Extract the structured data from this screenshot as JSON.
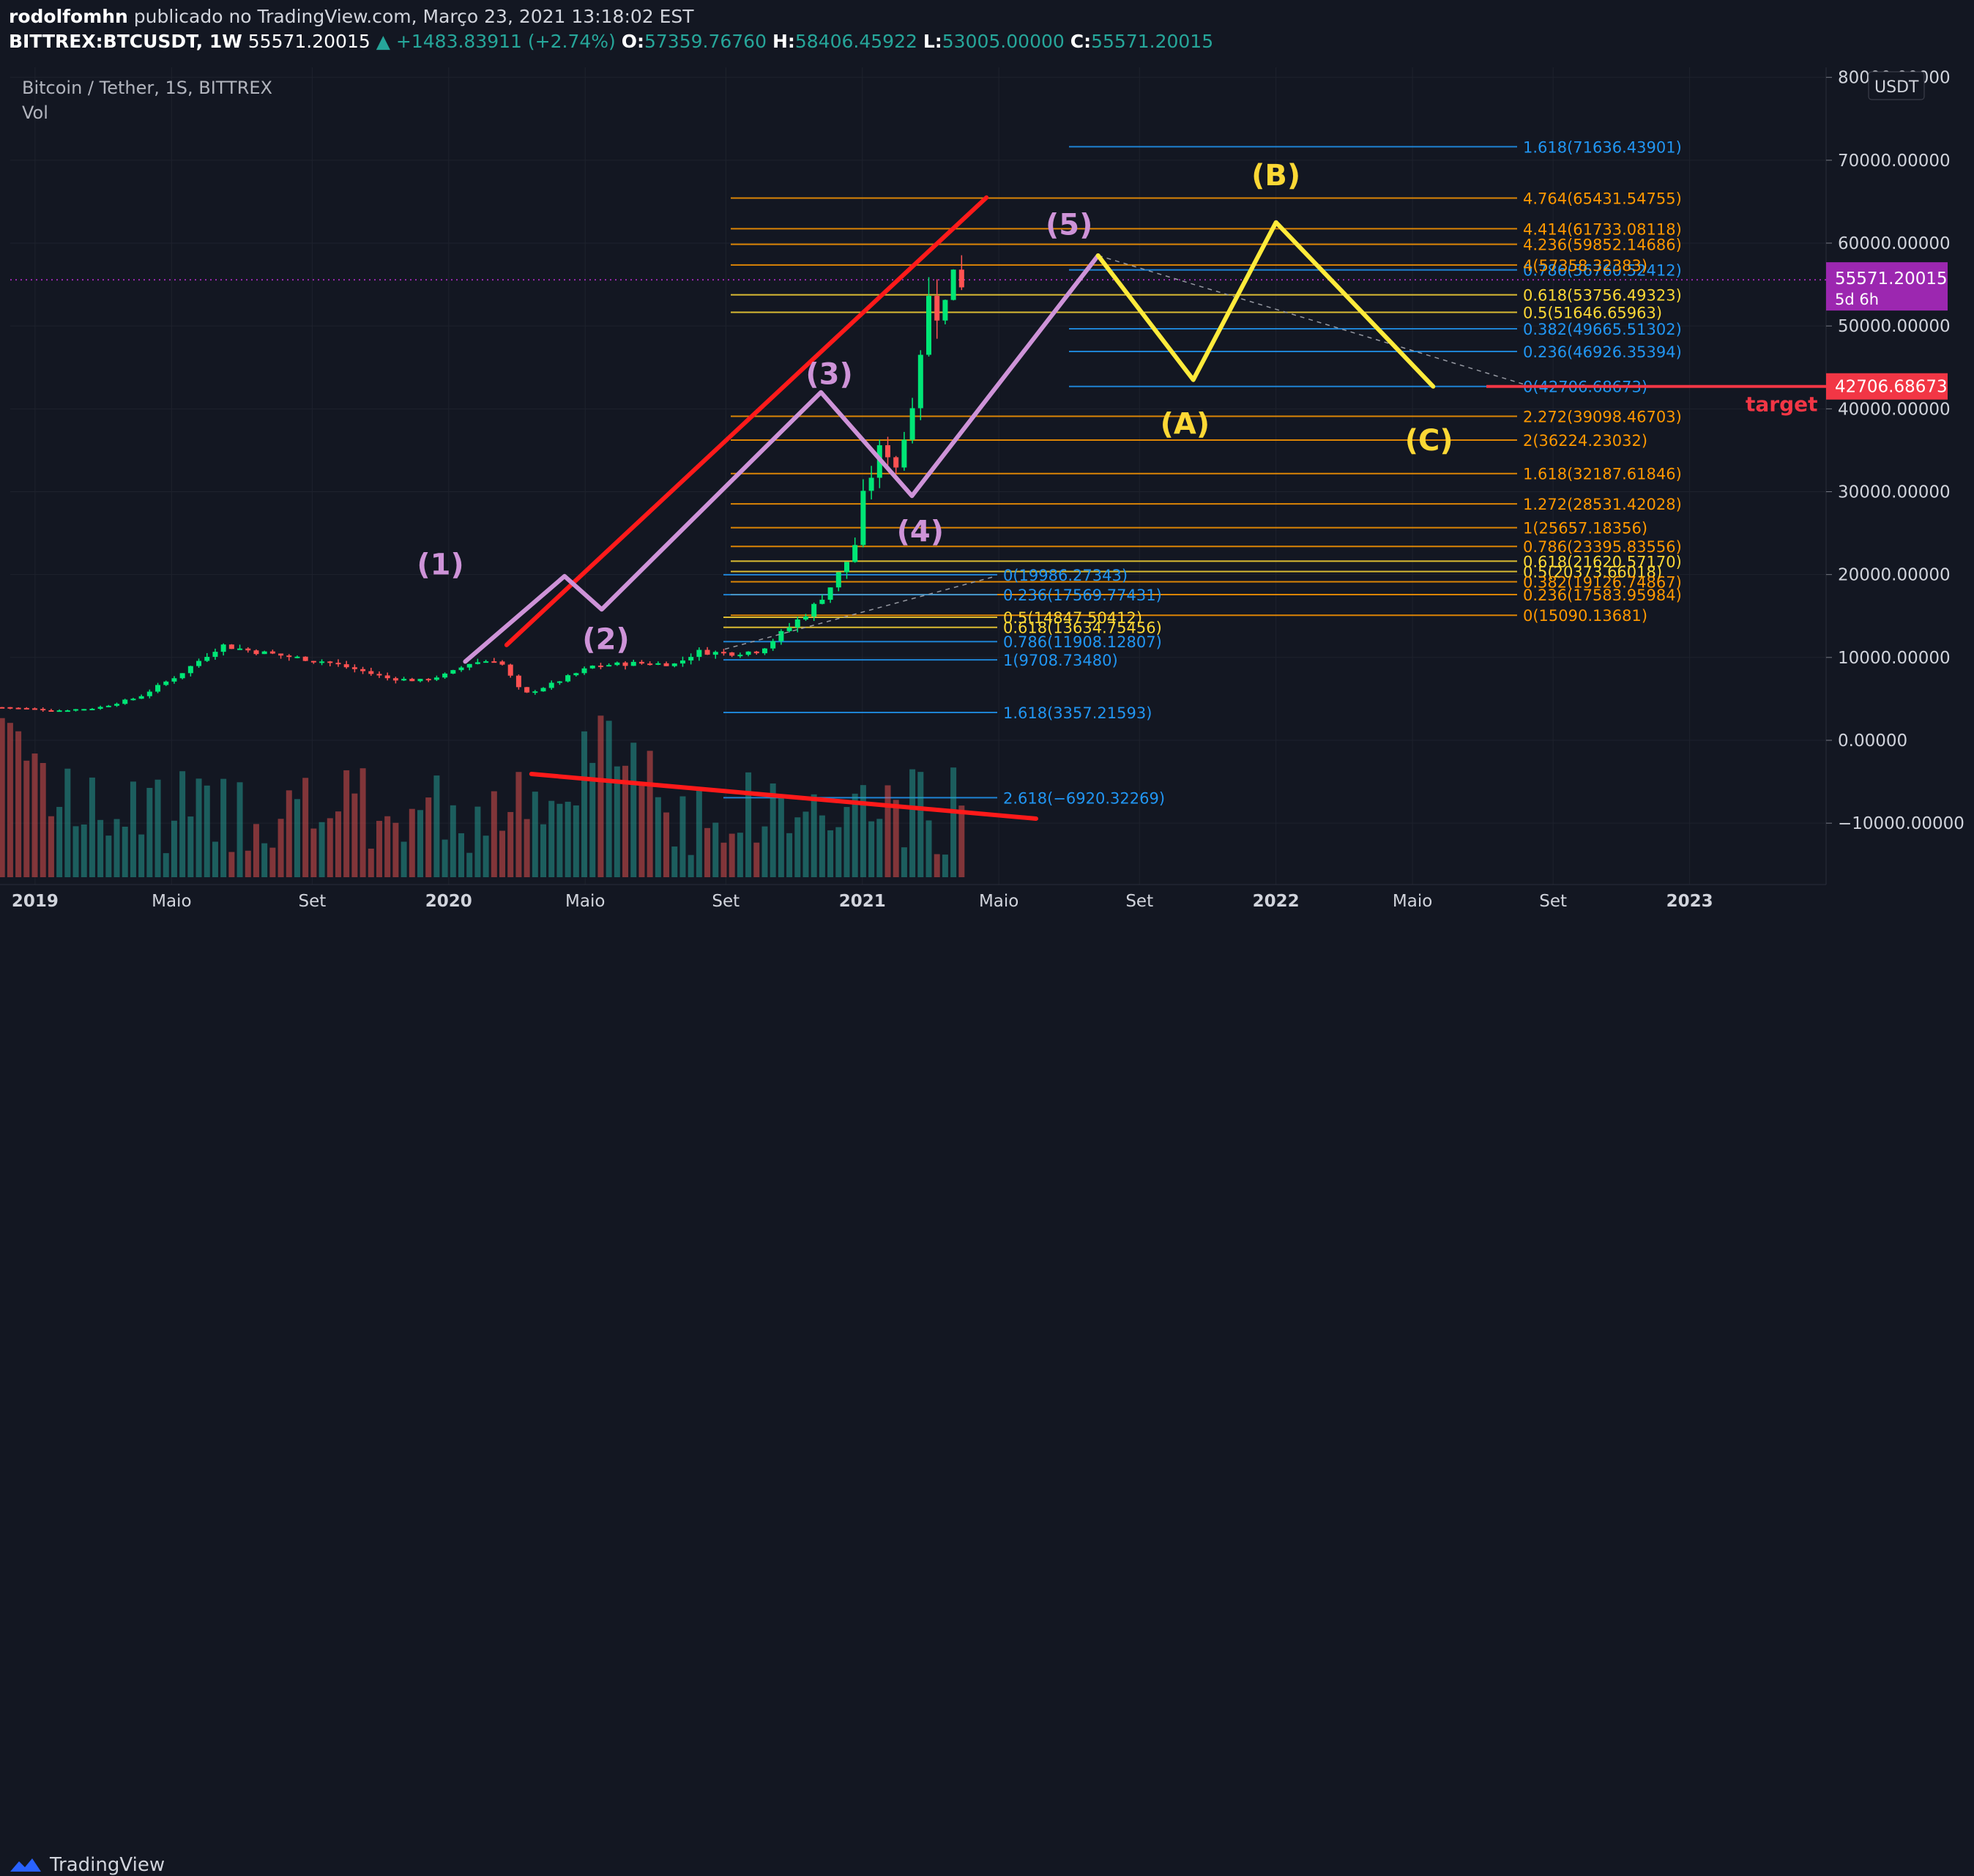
{
  "header": {
    "author": "rodolfomhn",
    "published": "publicado no TradingView.com, Março 23, 2021 13:18:02 EST",
    "symbol": "BITTREX:BTCUSDT, 1W",
    "last": "55571.20015",
    "change": "▲ +1483.83911 (+2.74%)",
    "o_label": "O:",
    "o_value": "57359.76760",
    "h_label": "H:",
    "h_value": "58406.45922",
    "l_label": "L:",
    "l_value": "53005.00000",
    "c_label": "C:",
    "c_value": "55571.20015"
  },
  "footer": {
    "logo_text": "TradingView"
  },
  "chart_data": {
    "type": "candlestick",
    "legend_title": "Bitcoin / Tether, 1S, BITTREX",
    "legend_vol": "Vol",
    "y_axis": {
      "unit": "USDT",
      "min": -15000,
      "max": 80000,
      "ticks": [
        80000,
        70000,
        60000,
        50000,
        40000,
        30000,
        20000,
        10000,
        0,
        -10000
      ],
      "tick_labels": [
        "80000.00000",
        "70000.00000",
        "60000.00000",
        "50000.00000",
        "40000.00000",
        "30000.00000",
        "20000.00000",
        "10000.00000",
        "0.00000",
        "−10000.00000"
      ]
    },
    "x_axis": {
      "labels": [
        {
          "t": 2019.0,
          "label": "2019",
          "bold": true
        },
        {
          "t": 2019.33,
          "label": "Maio",
          "bold": false
        },
        {
          "t": 2019.67,
          "label": "Set",
          "bold": false
        },
        {
          "t": 2020.0,
          "label": "2020",
          "bold": true
        },
        {
          "t": 2020.33,
          "label": "Maio",
          "bold": false
        },
        {
          "t": 2020.67,
          "label": "Set",
          "bold": false
        },
        {
          "t": 2021.0,
          "label": "2021",
          "bold": true
        },
        {
          "t": 2021.33,
          "label": "Maio",
          "bold": false
        },
        {
          "t": 2021.67,
          "label": "Set",
          "bold": false
        },
        {
          "t": 2022.0,
          "label": "2022",
          "bold": true
        },
        {
          "t": 2022.33,
          "label": "Maio",
          "bold": false
        },
        {
          "t": 2022.67,
          "label": "Set",
          "bold": false
        },
        {
          "t": 2023.0,
          "label": "2023",
          "bold": true
        }
      ]
    },
    "price_keypoints": [
      [
        2018.92,
        4000
      ],
      [
        2019.05,
        3600
      ],
      [
        2019.15,
        3900
      ],
      [
        2019.25,
        5200
      ],
      [
        2019.35,
        8000
      ],
      [
        2019.45,
        11500
      ],
      [
        2019.52,
        10800
      ],
      [
        2019.6,
        10200
      ],
      [
        2019.7,
        9500
      ],
      [
        2019.78,
        8500
      ],
      [
        2019.85,
        7500
      ],
      [
        2019.93,
        7200
      ],
      [
        2020.0,
        8000
      ],
      [
        2020.05,
        9300
      ],
      [
        2020.12,
        9800
      ],
      [
        2020.18,
        5500
      ],
      [
        2020.25,
        6800
      ],
      [
        2020.35,
        9000
      ],
      [
        2020.45,
        9300
      ],
      [
        2020.55,
        9200
      ],
      [
        2020.6,
        10700
      ],
      [
        2020.68,
        10500
      ],
      [
        2020.75,
        10800
      ],
      [
        2020.82,
        13500
      ],
      [
        2020.88,
        16000
      ],
      [
        2020.93,
        19000
      ],
      [
        2020.98,
        23000
      ],
      [
        2021.0,
        29000
      ],
      [
        2021.05,
        36000
      ],
      [
        2021.08,
        33000
      ],
      [
        2021.11,
        38000
      ],
      [
        2021.14,
        47000
      ],
      [
        2021.17,
        56000
      ],
      [
        2021.19,
        48000
      ],
      [
        2021.21,
        57000
      ],
      [
        2021.23,
        58000
      ],
      [
        2021.24,
        55571
      ]
    ],
    "volume_range": {
      "min": 0,
      "max": 100
    },
    "fib_levels": [
      {
        "label": "1.618(71636.43901)",
        "value": 71636.44,
        "color": "#2196f3"
      },
      {
        "label": "4.764(65431.54755)",
        "value": 65431.55,
        "color": "#ff9800"
      },
      {
        "label": "4.414(61733.08118)",
        "value": 61733.08,
        "color": "#ff9800"
      },
      {
        "label": "4.236(59852.14686)",
        "value": 59852.15,
        "color": "#ff9800"
      },
      {
        "label": "0.786(56760.52412)",
        "value": 56760.52,
        "color": "#2196f3"
      },
      {
        "label": "4(57358.32383)",
        "value": 57358.32,
        "color": "#ff9800"
      },
      {
        "label": "0.618(53756.49323)",
        "value": 53756.49,
        "color": "#fdd835"
      },
      {
        "label": "0.5(51646.65963)",
        "value": 51646.66,
        "color": "#fdd835"
      },
      {
        "label": "0.382(49665.51302)",
        "value": 49665.51,
        "color": "#2196f3"
      },
      {
        "label": "0.236(46926.35394)",
        "value": 46926.35,
        "color": "#2196f3"
      },
      {
        "label": "0(42706.68673)",
        "value": 42706.69,
        "color": "#2196f3"
      },
      {
        "label": "2.272(39098.46703)",
        "value": 39098.47,
        "color": "#ff9800"
      },
      {
        "label": "2(36224.23032)",
        "value": 36224.23,
        "color": "#ff9800"
      },
      {
        "label": "1.618(32187.61846)",
        "value": 32187.62,
        "color": "#ff9800"
      },
      {
        "label": "1.272(28531.42028)",
        "value": 28531.42,
        "color": "#ff9800"
      },
      {
        "label": "1(25657.18356)",
        "value": 25657.18,
        "color": "#ff9800"
      },
      {
        "label": "0.786(23395.83556)",
        "value": 23395.84,
        "color": "#ff9800"
      },
      {
        "label": "0.618(21620.57170)",
        "value": 21620.57,
        "color": "#fdd835"
      },
      {
        "label": "0.5(20373.66018)",
        "value": 20373.66,
        "color": "#fdd835"
      },
      {
        "label": "0.382(19126.74867)",
        "value": 19126.75,
        "color": "#ff9800"
      },
      {
        "label": "0.236(17583.95984)",
        "value": 17583.96,
        "color": "#ff9800"
      },
      {
        "label": "0(15090.13681)",
        "value": 15090.14,
        "color": "#ff9800"
      },
      {
        "label": "0(19986.27343)",
        "value": 19986.27,
        "color": "#2196f3"
      },
      {
        "label": "0.236(17569.77431)",
        "value": 17569.77,
        "color": "#2196f3"
      },
      {
        "label": "0.5(14847.50412)",
        "value": 14847.5,
        "color": "#fdd835"
      },
      {
        "label": "0.618(13634.75456)",
        "value": 13634.75,
        "color": "#fdd835"
      },
      {
        "label": "0.786(11908.12807)",
        "value": 11908.13,
        "color": "#2196f3"
      },
      {
        "label": "1(9708.73480)",
        "value": 9708.73,
        "color": "#2196f3"
      },
      {
        "label": "1.618(3357.21593)",
        "value": 3357.22,
        "color": "#2196f3"
      },
      {
        "label": "2.618(−6920.32269)",
        "value": -6920.32,
        "color": "#2196f3"
      }
    ],
    "waves": [
      {
        "label": "(1)",
        "t": 2019.98,
        "value": 20000,
        "color": "#ce93d8"
      },
      {
        "label": "(2)",
        "t": 2020.38,
        "value": 11000,
        "color": "#ce93d8"
      },
      {
        "label": "(3)",
        "t": 2020.92,
        "value": 43000,
        "color": "#ce93d8"
      },
      {
        "label": "(4)",
        "t": 2021.14,
        "value": 24000,
        "color": "#ce93d8"
      },
      {
        "label": "(5)",
        "t": 2021.5,
        "value": 61000,
        "color": "#ce93d8"
      },
      {
        "label": "(A)",
        "t": 2021.78,
        "value": 37000,
        "color": "#fdd835"
      },
      {
        "label": "(B)",
        "t": 2022.0,
        "value": 67000,
        "color": "#fdd835"
      },
      {
        "label": "(C)",
        "t": 2022.37,
        "value": 35000,
        "color": "#fdd835"
      }
    ],
    "wave_path_purple": [
      [
        2020.04,
        9500
      ],
      [
        2020.28,
        19800
      ],
      [
        2020.37,
        15800
      ],
      [
        2020.9,
        42000
      ],
      [
        2021.12,
        29500
      ],
      [
        2021.57,
        58500
      ]
    ],
    "wave_path_yellow": [
      [
        2021.57,
        58500
      ],
      [
        2021.8,
        43500
      ],
      [
        2022.0,
        62500
      ],
      [
        2022.38,
        42700
      ]
    ],
    "trend_red_upper": [
      [
        2020.14,
        11500
      ],
      [
        2021.3,
        65500
      ]
    ],
    "volume_trend_red": [
      [
        2020.2,
        40
      ],
      [
        2021.42,
        13
      ]
    ],
    "current_price": {
      "value": 55571.2,
      "label": "55571.20015",
      "sub": "5d 6h",
      "color": "#9c27b0"
    },
    "target": {
      "value": 42706.69,
      "label": "42706.68673",
      "text": "target",
      "color": "#f23645"
    }
  }
}
